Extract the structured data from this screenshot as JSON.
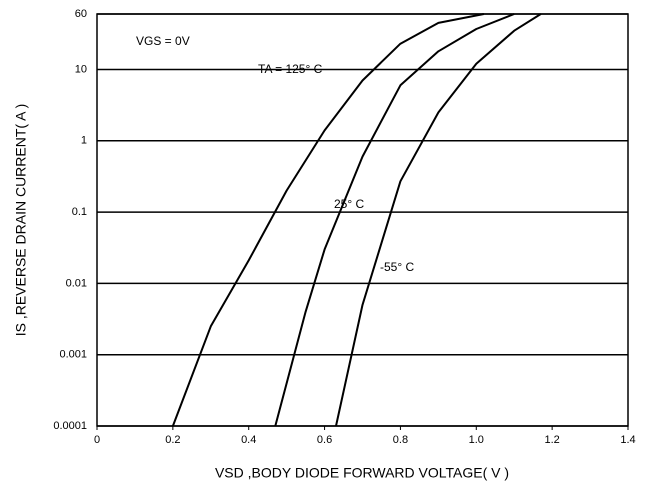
{
  "chart_data": {
    "type": "line",
    "xlabel": "VSD ,BODY DIODE FORWARD VOLTAGE( V )",
    "ylabel": "IS ,REVERSE DRAIN CURRENT( A )",
    "annotations": [
      "VGS = 0V",
      "TA = 125° C",
      "25° C",
      "-55° C"
    ],
    "ylog": true,
    "grid": true,
    "xlim": [
      0,
      1.4
    ],
    "ylim": [
      0.0001,
      60
    ],
    "xticks": [
      0,
      0.2,
      0.4,
      0.6,
      0.8,
      {
        "value": 1,
        "label": "1.0"
      },
      1.2,
      1.4
    ],
    "yticks": [
      0.0001,
      0.001,
      0.01,
      0.1,
      1,
      10,
      60
    ],
    "series": [
      {
        "color": "#000000",
        "x": [
          0.2,
          0.3,
          0.4,
          0.5,
          0.6,
          0.7,
          0.8,
          0.9,
          1.02
        ],
        "values": [
          0.0001,
          0.0025,
          0.021,
          0.2,
          1.4,
          7,
          23,
          45,
          60
        ]
      },
      {
        "color": "#000000",
        "x": [
          0.47,
          0.55,
          0.6,
          0.7,
          0.8,
          0.9,
          1.0,
          1.1
        ],
        "values": [
          0.0001,
          0.004,
          0.03,
          0.6,
          6,
          18,
          37,
          60
        ]
      },
      {
        "color": "#000000",
        "x": [
          0.63,
          0.7,
          0.8,
          0.9,
          1.0,
          1.1,
          1.17
        ],
        "values": [
          0.0001,
          0.005,
          0.27,
          2.5,
          12,
          35,
          60
        ]
      }
    ]
  }
}
